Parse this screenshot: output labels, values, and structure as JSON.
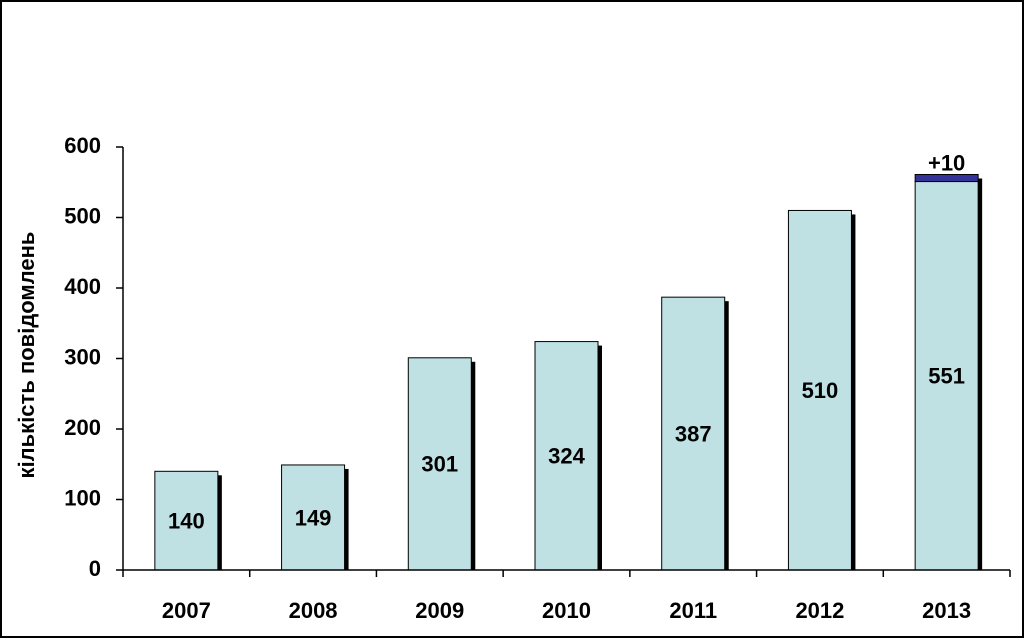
{
  "chart_data": {
    "type": "bar",
    "stacked": true,
    "y_label": "кількість повідомлень",
    "categories": [
      "2007",
      "2008",
      "2009",
      "2010",
      "2011",
      "2012",
      "2013"
    ],
    "series": [
      {
        "color": "#bfe1e4",
        "values": [
          140,
          149,
          301,
          324,
          387,
          510,
          551
        ]
      },
      {
        "color": "#333399",
        "values": [
          null,
          null,
          null,
          null,
          null,
          null,
          10
        ],
        "value_labels": [
          null,
          null,
          null,
          null,
          null,
          null,
          "+10"
        ]
      }
    ],
    "ylim": [
      0,
      600
    ],
    "yticks": [
      0,
      100,
      200,
      300,
      400,
      500,
      600
    ],
    "grid": false
  }
}
